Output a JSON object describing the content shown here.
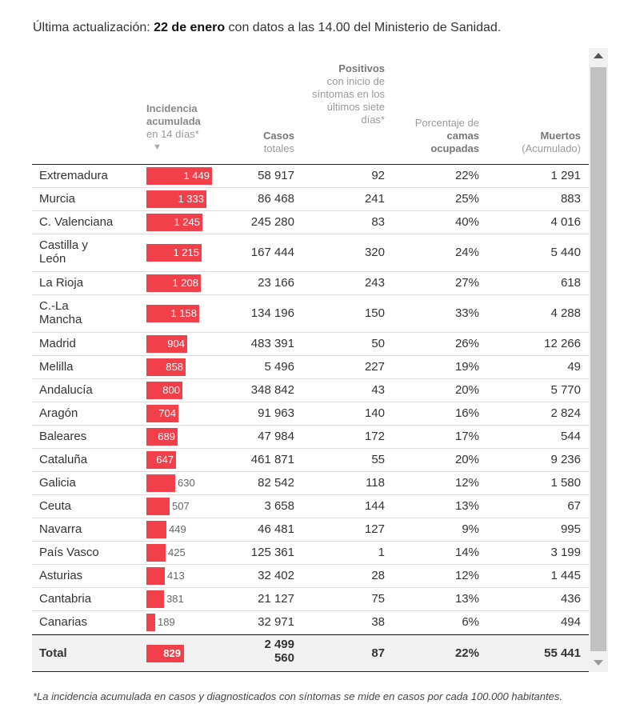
{
  "update": {
    "prefix": "Última actualización: ",
    "date": "22 de enero",
    "suffix": " con datos a las 14.00 del Ministerio de Sanidad."
  },
  "headers": {
    "inc_line1": "Incidencia acumulada",
    "inc_line2": "en 14 días*",
    "inc_arrow": "▼",
    "cases_line1": "Casos",
    "cases_line2": "totales",
    "pos_bold": "Positivos",
    "pos_rest": "con inicio de síntomas en los últimos siete días*",
    "pct_plain": "Porcentaje de ",
    "pct_bold": "camas ocupadas",
    "deaths_bold": "Muertos",
    "deaths_rest": "(Acumulado)"
  },
  "colors": {
    "bar": "#f2404b"
  },
  "rows": [
    {
      "name": "Extremadura",
      "inc": 1449,
      "inc_label": "1 449",
      "cases": "58 917",
      "pos": "92",
      "pct": "22%",
      "deaths": "1 291"
    },
    {
      "name": "Murcia",
      "inc": 1333,
      "inc_label": "1 333",
      "cases": "86 468",
      "pos": "241",
      "pct": "25%",
      "deaths": "883"
    },
    {
      "name": "C. Valenciana",
      "inc": 1245,
      "inc_label": "1 245",
      "cases": "245 280",
      "pos": "83",
      "pct": "40%",
      "deaths": "4 016"
    },
    {
      "name": "Castilla y León",
      "inc": 1215,
      "inc_label": "1 215",
      "cases": "167 444",
      "pos": "320",
      "pct": "24%",
      "deaths": "5 440"
    },
    {
      "name": "La Rioja",
      "inc": 1208,
      "inc_label": "1 208",
      "cases": "23 166",
      "pos": "243",
      "pct": "27%",
      "deaths": "618"
    },
    {
      "name": "C.-La Mancha",
      "inc": 1158,
      "inc_label": "1 158",
      "cases": "134 196",
      "pos": "150",
      "pct": "33%",
      "deaths": "4 288"
    },
    {
      "name": "Madrid",
      "inc": 904,
      "inc_label": "904",
      "cases": "483 391",
      "pos": "50",
      "pct": "26%",
      "deaths": "12 266"
    },
    {
      "name": "Melilla",
      "inc": 858,
      "inc_label": "858",
      "cases": "5 496",
      "pos": "227",
      "pct": "19%",
      "deaths": "49"
    },
    {
      "name": "Andalucía",
      "inc": 800,
      "inc_label": "800",
      "cases": "348 842",
      "pos": "43",
      "pct": "20%",
      "deaths": "5 770"
    },
    {
      "name": "Aragón",
      "inc": 704,
      "inc_label": "704",
      "cases": "91 963",
      "pos": "140",
      "pct": "16%",
      "deaths": "2 824"
    },
    {
      "name": "Baleares",
      "inc": 689,
      "inc_label": "689",
      "cases": "47 984",
      "pos": "172",
      "pct": "17%",
      "deaths": "544"
    },
    {
      "name": "Cataluña",
      "inc": 647,
      "inc_label": "647",
      "cases": "461 871",
      "pos": "55",
      "pct": "20%",
      "deaths": "9 236"
    },
    {
      "name": "Galicia",
      "inc": 630,
      "inc_label": "630",
      "cases": "82 542",
      "pos": "118",
      "pct": "12%",
      "deaths": "1 580"
    },
    {
      "name": "Ceuta",
      "inc": 507,
      "inc_label": "507",
      "cases": "3 658",
      "pos": "144",
      "pct": "13%",
      "deaths": "67"
    },
    {
      "name": "Navarra",
      "inc": 449,
      "inc_label": "449",
      "cases": "46 481",
      "pos": "127",
      "pct": "9%",
      "deaths": "995"
    },
    {
      "name": "País Vasco",
      "inc": 425,
      "inc_label": "425",
      "cases": "125 361",
      "pos": "1",
      "pct": "14%",
      "deaths": "3 199"
    },
    {
      "name": "Asturias",
      "inc": 413,
      "inc_label": "413",
      "cases": "32 402",
      "pos": "28",
      "pct": "12%",
      "deaths": "1 445"
    },
    {
      "name": "Cantabria",
      "inc": 381,
      "inc_label": "381",
      "cases": "21 127",
      "pos": "75",
      "pct": "13%",
      "deaths": "436"
    },
    {
      "name": "Canarias",
      "inc": 189,
      "inc_label": "189",
      "cases": "32 971",
      "pos": "38",
      "pct": "6%",
      "deaths": "494"
    }
  ],
  "total": {
    "name": "Total",
    "inc": 829,
    "inc_label": "829",
    "cases_line1": "2 499",
    "cases_line2": "560",
    "pos": "87",
    "pct": "22%",
    "deaths": "55 441"
  },
  "footnote": "*La incidencia acumulada en casos y diagnosticados con síntomas se mide en casos por cada 100.000 habitantes."
}
